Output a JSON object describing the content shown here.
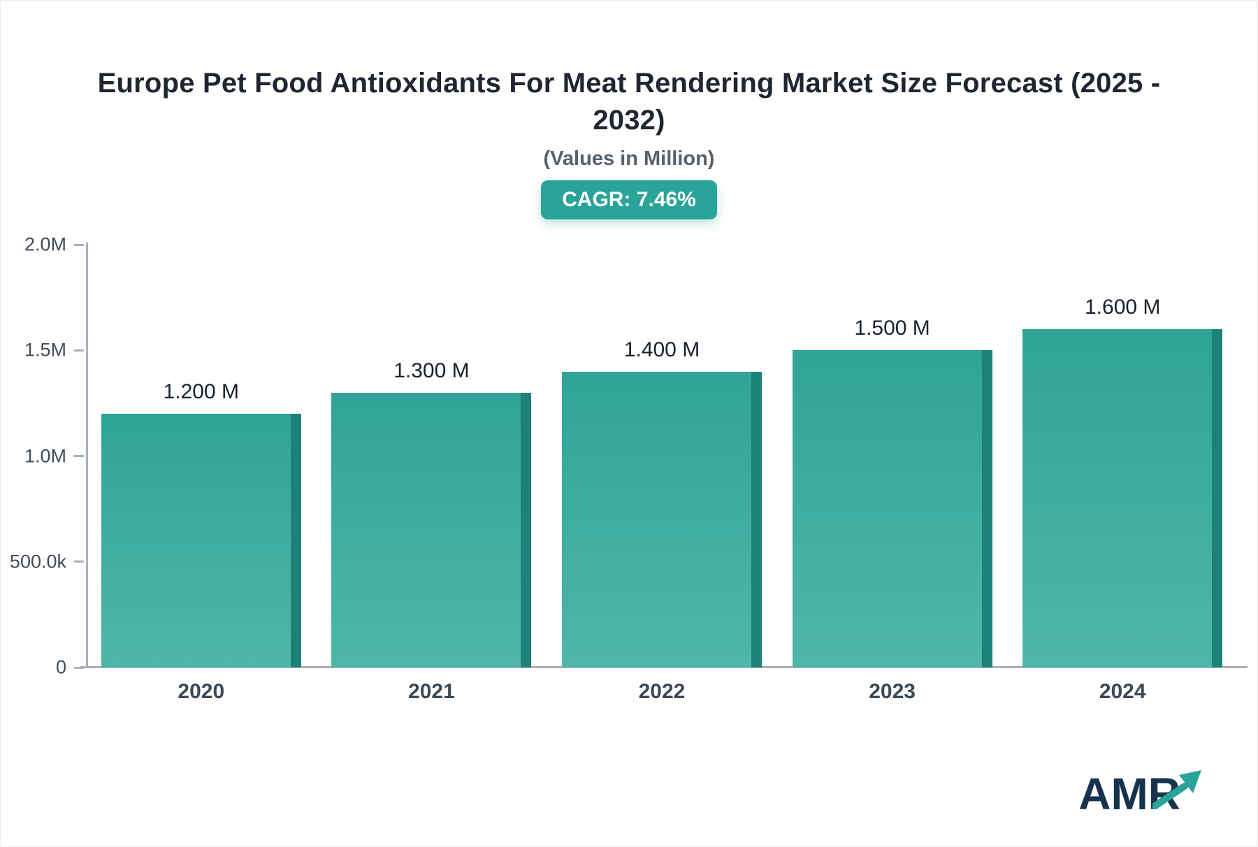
{
  "header": {
    "title": "Europe Pet Food Antioxidants For Meat Rendering Market Size Forecast (2025 - 2032)",
    "subtitle": "(Values in Million)",
    "cagr_badge": "CAGR: 7.46%"
  },
  "logo": {
    "text": "AMR"
  },
  "chart_data": {
    "type": "bar",
    "title": "Europe Pet Food Antioxidants For Meat Rendering Market Size Forecast (2025 - 2032)",
    "subtitle": "(Values in Million)",
    "cagr_pct": 7.46,
    "unit": "Million",
    "categories": [
      "2020",
      "2021",
      "2022",
      "2023",
      "2024"
    ],
    "values": [
      1200000,
      1300000,
      1400000,
      1500000,
      1600000
    ],
    "value_labels": [
      "1.200 M",
      "1.300 M",
      "1.400 M",
      "1.500 M",
      "1.600 M"
    ],
    "ylim": [
      0,
      2000000
    ],
    "yticks": [
      0,
      500000,
      1000000,
      1500000,
      2000000
    ],
    "ytick_labels": [
      "0",
      "500.0k",
      "1.0M",
      "1.5M",
      "2.0M"
    ],
    "grid": false,
    "legend": "none",
    "colors": {
      "accent": "#2aa398",
      "bar_face_top": "#2fa497",
      "bar_face_bottom": "#4fb7a8",
      "bar_side": "#1e8177",
      "axis": "#aab2bb"
    }
  }
}
